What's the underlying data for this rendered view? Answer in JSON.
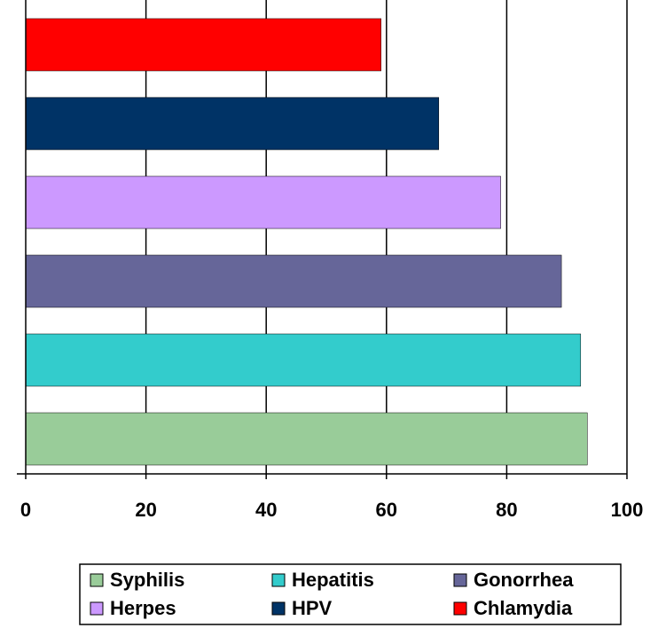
{
  "chart_data": {
    "type": "barh",
    "series": [
      {
        "name": "Syphilis",
        "color": "#99cc99",
        "values": [
          93.4
        ]
      },
      {
        "name": "Hepatitis",
        "color": "#33cccc",
        "values": [
          92.3
        ]
      },
      {
        "name": "Gonorrhea",
        "color": "#666699",
        "values": [
          89.1
        ]
      },
      {
        "name": "Herpes",
        "color": "#cc99ff",
        "values": [
          79
        ]
      },
      {
        "name": "HPV",
        "color": "#003366",
        "values": [
          68.7
        ]
      },
      {
        "name": "Chlamydia",
        "color": "#ff0000",
        "values": [
          59.1
        ]
      }
    ],
    "xlim": [
      0,
      100
    ],
    "xticks": [
      0,
      20,
      40,
      60,
      80,
      100
    ],
    "grid": true
  }
}
